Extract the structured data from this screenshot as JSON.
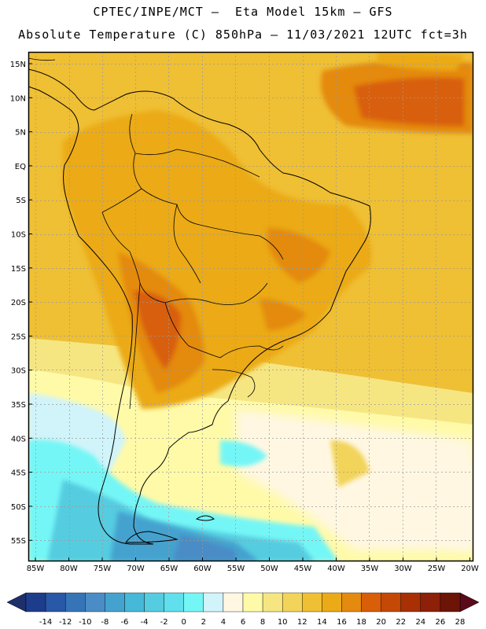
{
  "header": {
    "line1": "CPTEC/INPE/MCT –  Eta Model 15km – GFS",
    "line2": "Absolute Temperature (C) 850hPa – 11/03/2021 12UTC fct=3h"
  },
  "map": {
    "lat_labels": [
      "15N",
      "10N",
      "5N",
      "EQ",
      "5S",
      "10S",
      "15S",
      "20S",
      "25S",
      "30S",
      "35S",
      "40S",
      "45S",
      "50S",
      "55S"
    ],
    "lon_labels": [
      "85W",
      "80W",
      "75W",
      "70W",
      "65W",
      "60W",
      "55W",
      "50W",
      "45W",
      "40W",
      "35W",
      "30W",
      "25W",
      "20W"
    ]
  },
  "colorbar": {
    "labels": [
      "-14",
      "-12",
      "-10",
      "-8",
      "-6",
      "-4",
      "-2",
      "0",
      "2",
      "4",
      "6",
      "8",
      "10",
      "12",
      "14",
      "16",
      "18",
      "20",
      "22",
      "24",
      "26",
      "28"
    ],
    "colors": [
      "#1e3c8c",
      "#2a58a8",
      "#3674b8",
      "#4a8cc6",
      "#44a2cf",
      "#46b8d8",
      "#55cce0",
      "#5fe0ec",
      "#74f6f6",
      "#d0f4fa",
      "#fff7e2",
      "#fffaa8",
      "#f6e682",
      "#f2d45a",
      "#efbf34",
      "#ebaa18",
      "#e48a0e",
      "#d85e08",
      "#c44806",
      "#a83004",
      "#8c2008",
      "#6c1406"
    ]
  }
}
